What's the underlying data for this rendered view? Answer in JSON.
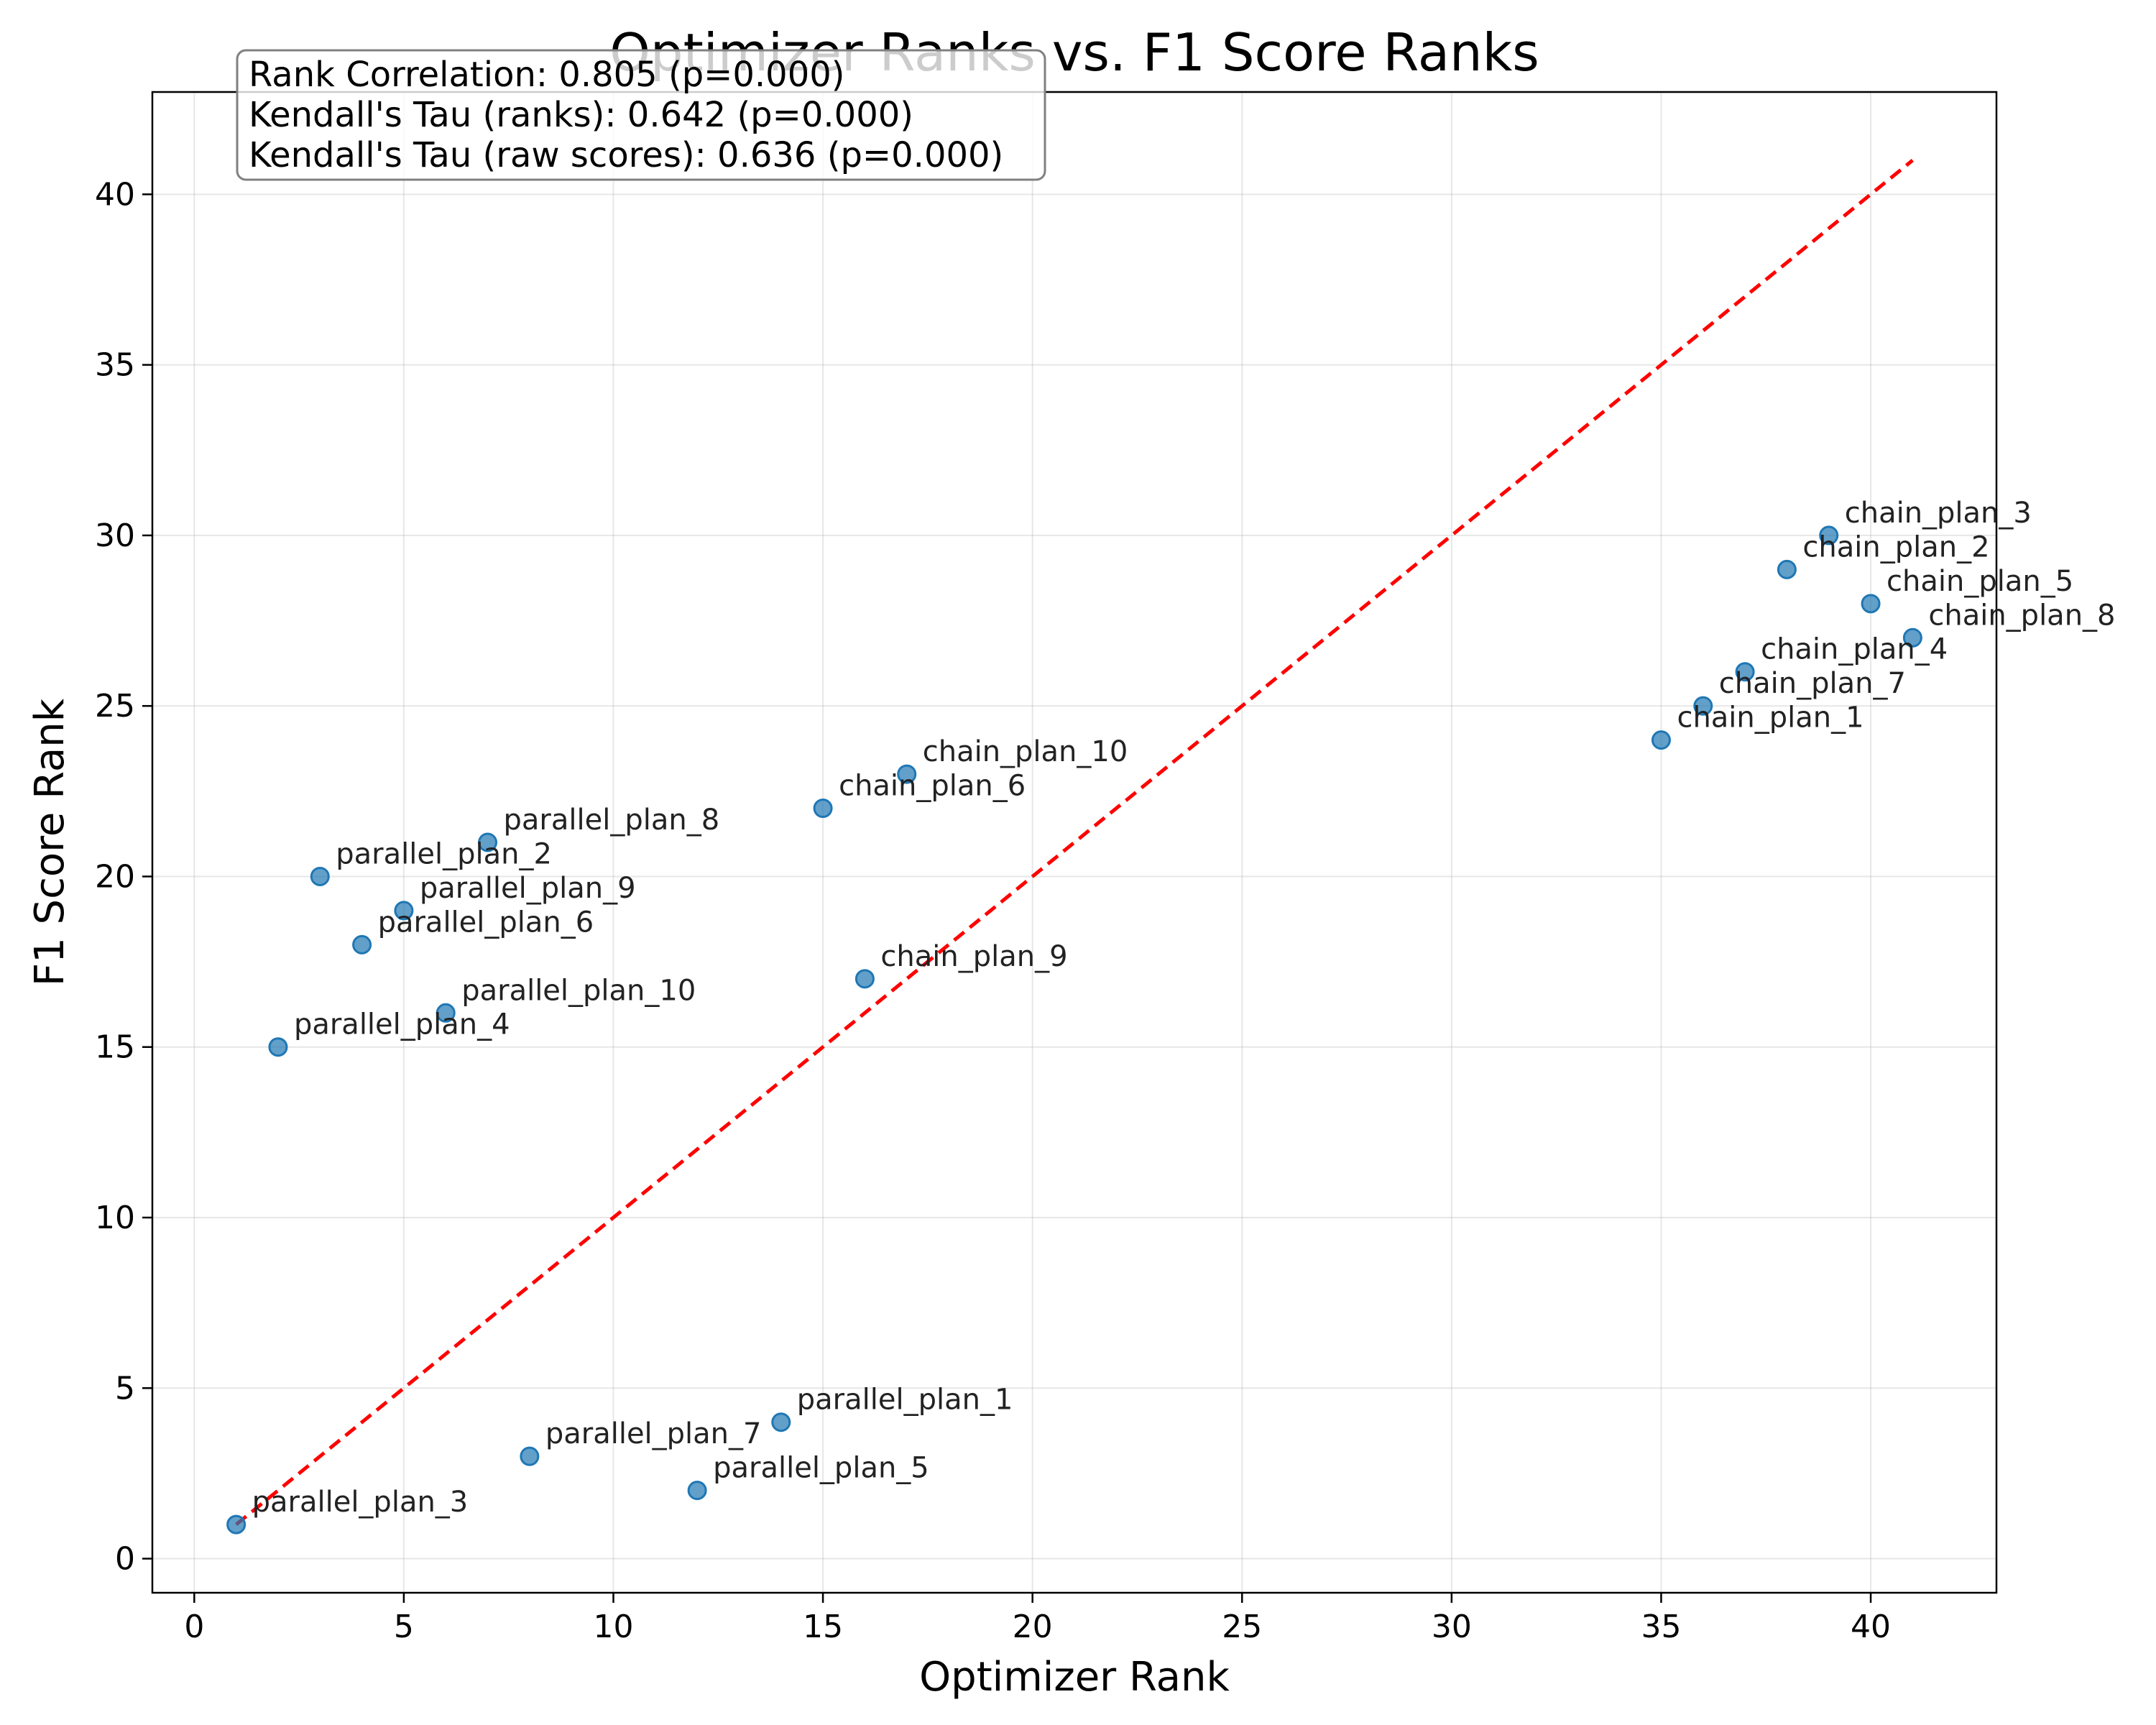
{
  "chart_data": {
    "type": "scatter",
    "title": "Optimizer Ranks vs. F1 Score Ranks",
    "xlabel": "Optimizer Rank",
    "ylabel": "F1 Score Rank",
    "xlim": [
      -1.0,
      43.0
    ],
    "ylim": [
      -1.0,
      43.0
    ],
    "xticks": [
      0,
      5,
      10,
      15,
      20,
      25,
      30,
      35,
      40
    ],
    "yticks": [
      0,
      5,
      10,
      15,
      20,
      25,
      30,
      35,
      40
    ],
    "grid": true,
    "reference_line": {
      "x": [
        1,
        41
      ],
      "y": [
        1,
        41
      ],
      "color": "#ff0000",
      "style": "dashed"
    },
    "point_color": "#1f77b4",
    "points": [
      {
        "label": "parallel_plan_3",
        "x": 1,
        "y": 1
      },
      {
        "label": "parallel_plan_4",
        "x": 2,
        "y": 15
      },
      {
        "label": "parallel_plan_2",
        "x": 3,
        "y": 20
      },
      {
        "label": "parallel_plan_6",
        "x": 4,
        "y": 18
      },
      {
        "label": "parallel_plan_9",
        "x": 5,
        "y": 19
      },
      {
        "label": "parallel_plan_10",
        "x": 6,
        "y": 16
      },
      {
        "label": "parallel_plan_8",
        "x": 7,
        "y": 21
      },
      {
        "label": "parallel_plan_7",
        "x": 8,
        "y": 3
      },
      {
        "label": "parallel_plan_5",
        "x": 12,
        "y": 2
      },
      {
        "label": "parallel_plan_1",
        "x": 14,
        "y": 4
      },
      {
        "label": "chain_plan_6",
        "x": 15,
        "y": 22
      },
      {
        "label": "chain_plan_9",
        "x": 16,
        "y": 17
      },
      {
        "label": "chain_plan_10",
        "x": 17,
        "y": 23
      },
      {
        "label": "chain_plan_1",
        "x": 35,
        "y": 24
      },
      {
        "label": "chain_plan_7",
        "x": 36,
        "y": 25
      },
      {
        "label": "chain_plan_4",
        "x": 37,
        "y": 26
      },
      {
        "label": "chain_plan_2",
        "x": 38,
        "y": 29
      },
      {
        "label": "chain_plan_3",
        "x": 39,
        "y": 30
      },
      {
        "label": "chain_plan_5",
        "x": 40,
        "y": 28
      },
      {
        "label": "chain_plan_8",
        "x": 41,
        "y": 27
      }
    ],
    "annotations": [
      "Rank Correlation: 0.805 (p=0.000)",
      "Kendall's Tau (ranks): 0.642 (p=0.000)",
      "Kendall's Tau (raw scores): 0.636 (p=0.000)"
    ]
  }
}
